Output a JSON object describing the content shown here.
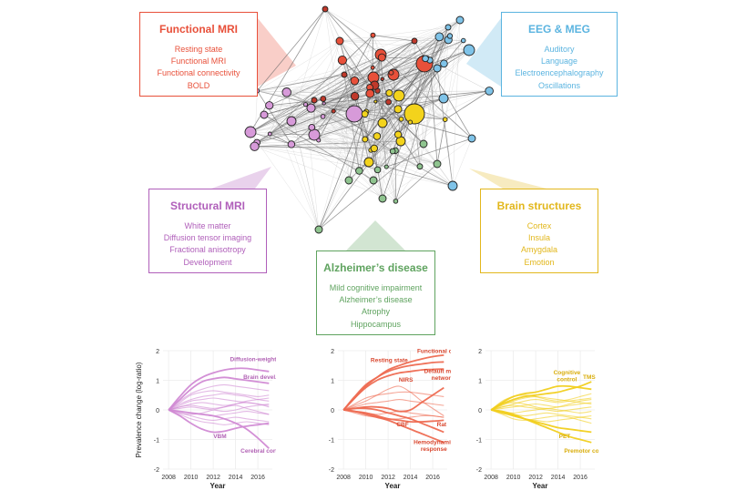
{
  "callouts": [
    {
      "title": "Functional MRI",
      "color": "#e8503a",
      "terms": [
        "Resting state",
        "Functional MRI",
        "Functional connectivity",
        "BOLD"
      ]
    },
    {
      "title": "EEG & MEG",
      "color": "#5bb4e0",
      "terms": [
        "Auditory",
        "Language",
        "Electroencephalography",
        "Oscillations"
      ]
    },
    {
      "title": "Structural MRI",
      "color": "#b05fba",
      "terms": [
        "White matter",
        "Diffusion tensor imaging",
        "Fractional anisotropy",
        "Development"
      ]
    },
    {
      "title": "Brain structures",
      "color": "#e2b71c",
      "terms": [
        "Cortex",
        "Insula",
        "Amygdala",
        "Emotion"
      ]
    },
    {
      "title": "Alzheimer’s disease",
      "color": "#5fa35f",
      "terms": [
        "Mild cognitive impairment",
        "Alzheimer’s disease",
        "Atrophy",
        "Hippocampus"
      ]
    }
  ],
  "network_colors": {
    "fmri": "#e8503a",
    "eeg": "#7fc3e8",
    "structural": "#d79ad9",
    "structures": "#f3d31c",
    "alzheimer": "#8fc48f",
    "other": "#c0392b"
  },
  "chart_data": [
    {
      "type": "line",
      "color": "#d18ad4",
      "xlabel": "Year",
      "ylabel": "Prevalence change (log‑ratio)",
      "xlim": [
        2007.5,
        2017.3
      ],
      "ylim": [
        -2,
        2
      ],
      "xticks": [
        2008,
        2010,
        2012,
        2014,
        2016
      ],
      "yticks": [
        -2,
        -1,
        0,
        1,
        2
      ],
      "x": [
        2008,
        2009,
        2010,
        2011,
        2012,
        2013,
        2014,
        2015,
        2016,
        2017
      ],
      "series": [
        {
          "name": "Diffusion-weighted imaging",
          "values": [
            0,
            0.45,
            0.85,
            1.1,
            1.25,
            1.35,
            1.4,
            1.4,
            1.35,
            1.3
          ],
          "labeled": true
        },
        {
          "name": "Brain devel.",
          "values": [
            0,
            0.35,
            0.7,
            0.95,
            1.05,
            1.1,
            1.05,
            1.0,
            0.95,
            0.9
          ],
          "labeled": true
        },
        {
          "name": "VBM",
          "values": [
            0,
            -0.2,
            -0.45,
            -0.65,
            -0.75,
            -0.72,
            -0.62,
            -0.55,
            -0.5,
            -0.45
          ],
          "labeled": true
        },
        {
          "name": "Cerebral cortex",
          "values": [
            0,
            -0.05,
            -0.1,
            -0.15,
            -0.2,
            -0.3,
            -0.45,
            -0.65,
            -0.95,
            -1.3
          ],
          "labeled": true
        },
        {
          "values": [
            0,
            0.25,
            0.5,
            0.6,
            0.65,
            0.6,
            0.55,
            0.5,
            0.45,
            0.5
          ]
        },
        {
          "values": [
            0,
            0.2,
            0.35,
            0.45,
            0.5,
            0.55,
            0.5,
            0.45,
            0.35,
            0.3
          ]
        },
        {
          "values": [
            0,
            0.15,
            0.3,
            0.35,
            0.4,
            0.35,
            0.3,
            0.25,
            0.2,
            0.15
          ]
        },
        {
          "values": [
            0,
            0.1,
            0.2,
            0.25,
            0.2,
            0.15,
            0.2,
            0.3,
            0.35,
            0.4
          ]
        },
        {
          "values": [
            0,
            0.05,
            0.1,
            0.05,
            0.0,
            -0.05,
            0.0,
            0.1,
            0.15,
            0.2
          ]
        },
        {
          "values": [
            0,
            -0.05,
            -0.1,
            -0.15,
            -0.2,
            -0.15,
            -0.1,
            -0.05,
            -0.1,
            -0.15
          ]
        },
        {
          "values": [
            0,
            -0.1,
            -0.2,
            -0.3,
            -0.35,
            -0.3,
            -0.25,
            -0.3,
            -0.35,
            -0.4
          ]
        },
        {
          "values": [
            0,
            -0.15,
            -0.3,
            -0.4,
            -0.45,
            -0.5,
            -0.45,
            -0.4,
            -0.45,
            -0.5
          ]
        },
        {
          "values": [
            0,
            0.3,
            0.55,
            0.7,
            0.8,
            0.85,
            0.8,
            0.75,
            0.7,
            0.65
          ]
        },
        {
          "values": [
            0,
            -0.1,
            -0.15,
            -0.1,
            0.0,
            0.1,
            0.2,
            0.25,
            0.2,
            0.1
          ]
        },
        {
          "values": [
            0,
            0.1,
            0.15,
            0.1,
            0.05,
            0.1,
            0.15,
            0.05,
            -0.05,
            -0.15
          ]
        }
      ]
    },
    {
      "type": "line",
      "color": "#ee6b52",
      "xlabel": "Year",
      "ylabel": "",
      "xlim": [
        2007.5,
        2017.3
      ],
      "ylim": [
        -2,
        2
      ],
      "xticks": [
        2008,
        2010,
        2012,
        2014,
        2016
      ],
      "yticks": [
        -2,
        -1,
        0,
        1,
        2
      ],
      "x": [
        2008,
        2009,
        2010,
        2011,
        2012,
        2013,
        2014,
        2015,
        2016,
        2017
      ],
      "series": [
        {
          "name": "Functional connectivity",
          "values": [
            0,
            0.4,
            0.8,
            1.1,
            1.35,
            1.5,
            1.62,
            1.72,
            1.8,
            1.85
          ],
          "labeled": true
        },
        {
          "name": "Resting state",
          "values": [
            0,
            0.45,
            0.85,
            1.1,
            1.3,
            1.42,
            1.5,
            1.55,
            1.6,
            1.62
          ],
          "labeled": true
        },
        {
          "name": "Default mode network",
          "values": [
            0,
            0.4,
            0.75,
            1.0,
            1.15,
            1.25,
            1.3,
            1.35,
            1.37,
            1.38
          ],
          "labeled": true
        },
        {
          "name": "NIRS",
          "values": [
            0,
            0.05,
            0.1,
            0.1,
            0.05,
            -0.05,
            0.0,
            0.25,
            0.5,
            0.75
          ],
          "labeled": true
        },
        {
          "name": "CBF",
          "values": [
            0,
            -0.05,
            -0.1,
            -0.2,
            -0.3,
            -0.35,
            -0.4,
            -0.4,
            -0.38,
            -0.35
          ],
          "labeled": true
        },
        {
          "name": "Rat",
          "values": [
            0,
            0.05,
            0.05,
            0.0,
            -0.1,
            -0.2,
            -0.3,
            -0.45,
            -0.6,
            -0.75
          ],
          "labeled": true
        },
        {
          "name": "Hemodynamic response",
          "values": [
            0,
            -0.05,
            -0.15,
            -0.25,
            -0.35,
            -0.5,
            -0.65,
            -0.8,
            -0.95,
            -1.1
          ],
          "labeled": true
        },
        {
          "values": [
            0,
            0.2,
            0.4,
            0.5,
            0.55,
            0.6,
            0.6,
            0.55,
            0.5,
            0.45
          ]
        },
        {
          "values": [
            0,
            0.1,
            0.2,
            0.25,
            0.3,
            0.35,
            0.3,
            0.25,
            0.2,
            0.15
          ]
        },
        {
          "values": [
            0,
            -0.05,
            -0.1,
            -0.15,
            -0.1,
            -0.05,
            -0.1,
            -0.15,
            -0.2,
            -0.25
          ]
        },
        {
          "values": [
            0,
            0.15,
            0.3,
            0.5,
            0.7,
            0.8,
            0.6,
            0.3,
            0.05,
            -0.2
          ]
        },
        {
          "values": [
            0,
            -0.1,
            -0.2,
            -0.25,
            -0.3,
            -0.3,
            -0.25,
            -0.2,
            -0.2,
            -0.25
          ]
        }
      ]
    },
    {
      "type": "line",
      "color": "#f1cf1e",
      "xlabel": "Year",
      "ylabel": "",
      "xlim": [
        2007.5,
        2017.3
      ],
      "ylim": [
        -2,
        2
      ],
      "xticks": [
        2008,
        2010,
        2012,
        2014,
        2016
      ],
      "yticks": [
        -2,
        -1,
        0,
        1,
        2
      ],
      "x": [
        2008,
        2009,
        2010,
        2011,
        2012,
        2013,
        2014,
        2015,
        2016,
        2017
      ],
      "series": [
        {
          "name": "TMS",
          "values": [
            0,
            0.2,
            0.35,
            0.45,
            0.5,
            0.55,
            0.6,
            0.7,
            0.8,
            0.95
          ],
          "labeled": true
        },
        {
          "name": "Cognitive control",
          "values": [
            0,
            0.25,
            0.45,
            0.55,
            0.6,
            0.7,
            0.8,
            0.8,
            0.75,
            0.7
          ],
          "labeled": true
        },
        {
          "name": "PET",
          "values": [
            0,
            -0.1,
            -0.2,
            -0.3,
            -0.4,
            -0.5,
            -0.6,
            -0.65,
            -0.7,
            -0.75
          ],
          "labeled": true
        },
        {
          "name": "Premotor cortex",
          "values": [
            0,
            -0.05,
            -0.15,
            -0.3,
            -0.45,
            -0.6,
            -0.75,
            -0.9,
            -1.0,
            -1.1
          ],
          "labeled": true
        },
        {
          "values": [
            0,
            0.15,
            0.3,
            0.4,
            0.45,
            0.4,
            0.35,
            0.3,
            0.25,
            0.2
          ]
        },
        {
          "values": [
            0,
            0.1,
            0.2,
            0.3,
            0.35,
            0.3,
            0.25,
            0.3,
            0.35,
            0.4
          ]
        },
        {
          "values": [
            0,
            0.05,
            0.1,
            0.15,
            0.2,
            0.15,
            0.1,
            0.15,
            0.2,
            0.25
          ]
        },
        {
          "values": [
            0,
            -0.05,
            -0.1,
            -0.05,
            0.0,
            0.05,
            0.0,
            -0.05,
            -0.1,
            -0.05
          ]
        },
        {
          "values": [
            0,
            -0.1,
            -0.15,
            -0.2,
            -0.15,
            -0.1,
            -0.15,
            -0.2,
            -0.25,
            -0.3
          ]
        },
        {
          "values": [
            0,
            0.2,
            0.25,
            0.2,
            0.1,
            0.05,
            0.1,
            0.2,
            0.3,
            0.35
          ]
        },
        {
          "values": [
            0,
            -0.15,
            -0.3,
            -0.35,
            -0.3,
            -0.25,
            -0.2,
            -0.25,
            -0.35,
            -0.45
          ]
        },
        {
          "values": [
            0,
            0.1,
            0.15,
            0.1,
            0.05,
            0.0,
            -0.05,
            0.0,
            0.05,
            0.1
          ]
        },
        {
          "values": [
            0,
            -0.05,
            -0.2,
            -0.3,
            -0.35,
            -0.4,
            -0.35,
            -0.3,
            -0.25,
            -0.2
          ]
        },
        {
          "values": [
            0,
            0.3,
            0.45,
            0.5,
            0.45,
            0.35,
            0.3,
            0.35,
            0.45,
            0.55
          ]
        }
      ]
    }
  ]
}
